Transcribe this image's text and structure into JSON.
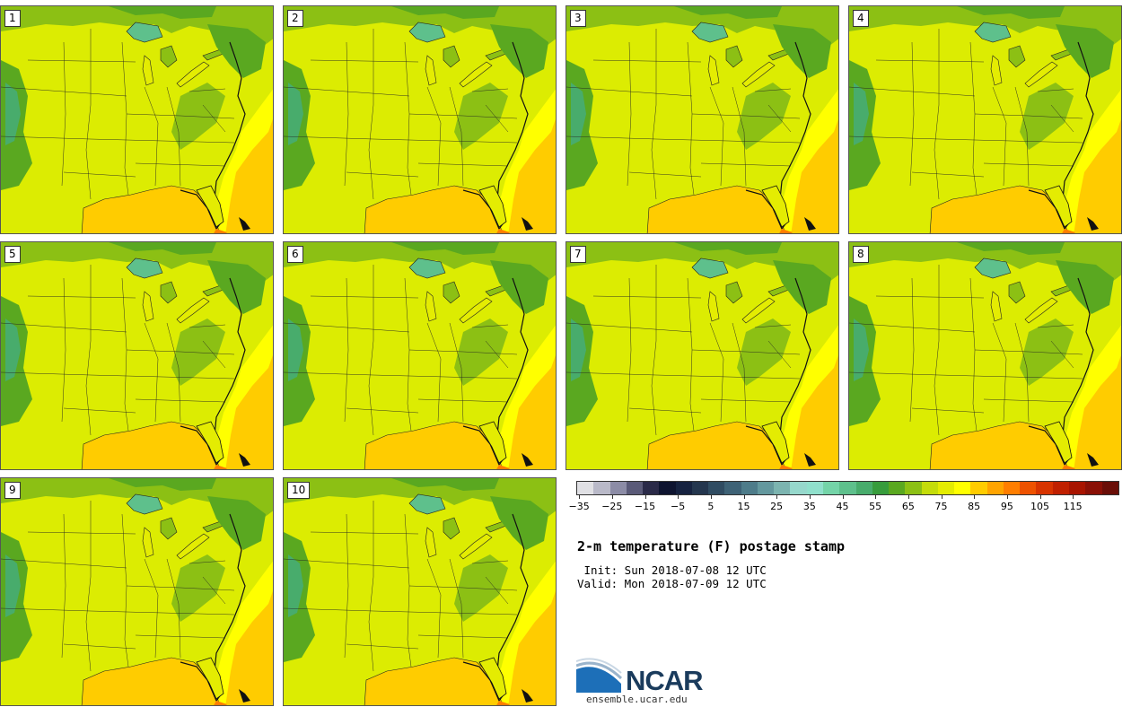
{
  "panels": [
    {
      "label": "1"
    },
    {
      "label": "2"
    },
    {
      "label": "3"
    },
    {
      "label": "4"
    },
    {
      "label": "5"
    },
    {
      "label": "6"
    },
    {
      "label": "7"
    },
    {
      "label": "8"
    },
    {
      "label": "9"
    },
    {
      "label": "10"
    }
  ],
  "colorbar": {
    "colors": [
      "#e0e0e4",
      "#b9b9c8",
      "#8c8ca6",
      "#5a5a78",
      "#2a2a48",
      "#0e1430",
      "#162240",
      "#24364e",
      "#304c62",
      "#3e6276",
      "#4e7c8a",
      "#64989e",
      "#7cb4b0",
      "#96d8cc",
      "#90e0cc",
      "#74d4a8",
      "#5ec08c",
      "#48ac6c",
      "#379c3c",
      "#5aa820",
      "#8cc014",
      "#c4dc0a",
      "#e4ec02",
      "#ffff00",
      "#ffcc00",
      "#ffa400",
      "#ff7e00",
      "#ee5200",
      "#d83400",
      "#c02000",
      "#a81400",
      "#8a1006",
      "#6a0e08"
    ],
    "tick_labels": [
      "−35",
      "−25",
      "−15",
      "−5",
      "5",
      "15",
      "25",
      "35",
      "45",
      "55",
      "65",
      "75",
      "85",
      "95",
      "105",
      "115"
    ]
  },
  "title": "2-m temperature (F) postage stamp",
  "init_line": " Init: Sun 2018-07-08 12 UTC",
  "valid_line": "Valid: Mon 2018-07-09 12 UTC",
  "logo": {
    "text": "NCAR",
    "url": "ensemble.ucar.edu"
  }
}
